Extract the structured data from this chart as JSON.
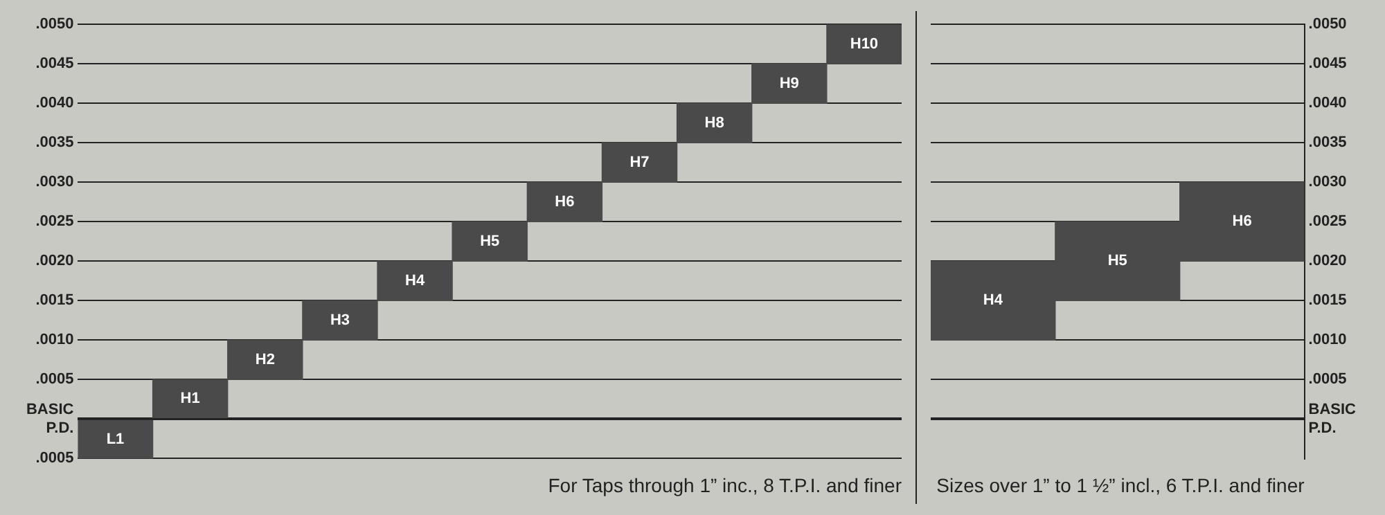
{
  "chart_data": [
    {
      "type": "bar",
      "categories": [
        "L1",
        "H1",
        "H2",
        "H3",
        "H4",
        "H5",
        "H6",
        "H7",
        "H8",
        "H9",
        "H10"
      ],
      "base": [
        -0.0005,
        0,
        0.0005,
        0.001,
        0.0015,
        0.002,
        0.0025,
        0.003,
        0.0035,
        0.004,
        0.0045
      ],
      "values": [
        0.0005,
        0.0005,
        0.0005,
        0.0005,
        0.0005,
        0.0005,
        0.0005,
        0.0005,
        0.0005,
        0.0005,
        0.0005
      ],
      "color": "#4a4a4a",
      "ylim": [
        -0.0005,
        0.005
      ],
      "yticks": [
        {
          "value": -0.0005,
          "label": ".0005"
        },
        {
          "value": 0,
          "label": "BASIC\nP.D."
        },
        {
          "value": 0.0005,
          "label": ".0005"
        },
        {
          "value": 0.001,
          "label": ".0010"
        },
        {
          "value": 0.0015,
          "label": ".0015"
        },
        {
          "value": 0.002,
          "label": ".0020"
        },
        {
          "value": 0.0025,
          "label": ".0025"
        },
        {
          "value": 0.003,
          "label": ".0030"
        },
        {
          "value": 0.0035,
          "label": ".0035"
        },
        {
          "value": 0.004,
          "label": ".0040"
        },
        {
          "value": 0.0045,
          "label": ".0045"
        },
        {
          "value": 0.005,
          "label": ".0050"
        }
      ],
      "grid": "y",
      "xlabel": "For Taps through 1” inc., 8 T.P.I. and finer"
    },
    {
      "type": "bar",
      "categories": [
        "H4",
        "H5",
        "H6"
      ],
      "base": [
        0.001,
        0.0015,
        0.002
      ],
      "values": [
        0.001,
        0.001,
        0.001
      ],
      "color": "#4a4a4a",
      "ylim": [
        -0.0005,
        0.005
      ],
      "yticks": [
        {
          "value": 0,
          "label": "BASIC\nP.D."
        },
        {
          "value": 0.0005,
          "label": ".0005"
        },
        {
          "value": 0.001,
          "label": ".0010"
        },
        {
          "value": 0.0015,
          "label": ".0015"
        },
        {
          "value": 0.002,
          "label": ".0020"
        },
        {
          "value": 0.0025,
          "label": ".0025"
        },
        {
          "value": 0.003,
          "label": ".0030"
        },
        {
          "value": 0.0035,
          "label": ".0035"
        },
        {
          "value": 0.004,
          "label": ".0040"
        },
        {
          "value": 0.0045,
          "label": ".0045"
        },
        {
          "value": 0.005,
          "label": ".0050"
        }
      ],
      "grid": "y",
      "xlabel": "Sizes over 1” to 1 ½” incl., 6 T.P.I. and finer"
    }
  ]
}
